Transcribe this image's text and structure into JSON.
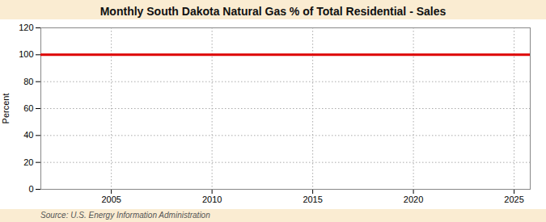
{
  "chart_data": {
    "type": "line",
    "title": "Monthly South Dakota Natural Gas % of Total Residential - Sales",
    "ylabel": "Percent",
    "caption": "Source: U.S. Energy Information Administration",
    "x": [
      2001.5,
      2025.8
    ],
    "values": [
      100,
      100
    ],
    "color": "#dd0000",
    "xlim": [
      2001.5,
      2025.8
    ],
    "xticks": [
      2005,
      2010,
      2015,
      2020,
      2025
    ],
    "ylim": [
      0,
      120
    ],
    "yticks": [
      0,
      20,
      40,
      60,
      80,
      100,
      120
    ],
    "grid": true
  }
}
